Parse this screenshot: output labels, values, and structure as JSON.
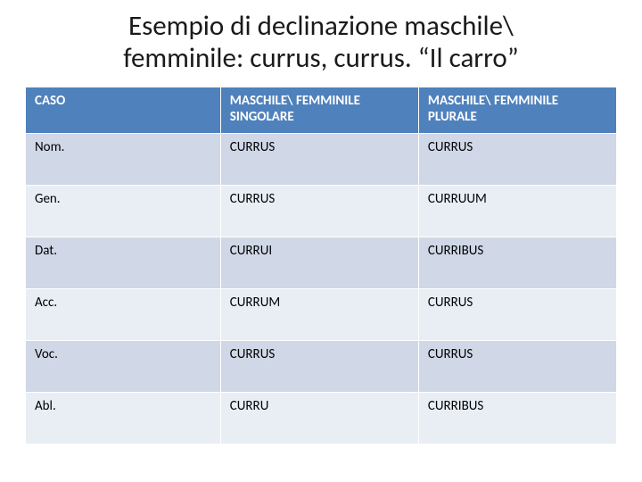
{
  "title_line1": "Esempio di declinazione maschile\\",
  "title_line2": "femminile: currus, currus. “Il carro”",
  "columns": [
    "CASO",
    "MASCHILE\\ FEMMINILE SINGOLARE",
    "MASCHILE\\ FEMMINILE PLURALE"
  ],
  "rows": [
    [
      "Nom.",
      "CURRUS",
      "CURRUS"
    ],
    [
      "Gen.",
      "CURRUS",
      "CURRUUM"
    ],
    [
      "Dat.",
      "CURRUI",
      "CURRIBUS"
    ],
    [
      "Acc.",
      "CURRUM",
      "CURRUS"
    ],
    [
      "Voc.",
      "CURRUS",
      "CURRUS"
    ],
    [
      "Abl.",
      "CURRU",
      "CURRIBUS"
    ]
  ],
  "colors": {
    "header_bg": "#4f81bd",
    "header_text": "#ffffff",
    "row_odd": "#d0d8e8",
    "row_even": "#e9edf4",
    "title_color": "#1a1a1a",
    "border": "#ffffff",
    "background": "#ffffff"
  },
  "font": {
    "title_size": 31,
    "cell_size": 15,
    "family": "Calibri"
  }
}
